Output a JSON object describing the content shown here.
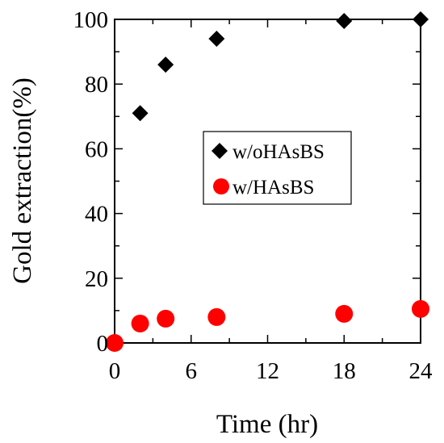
{
  "chart_data": {
    "type": "scatter",
    "xlabel": "Time (hr)",
    "ylabel": "Gold extraction(%)",
    "xlim": [
      0,
      24
    ],
    "ylim": [
      0,
      100
    ],
    "xticks": [
      "0",
      "6",
      "12",
      "18",
      "24"
    ],
    "yticks": [
      "0",
      "20",
      "40",
      "60",
      "80",
      "100"
    ],
    "grid": false,
    "legend_position": "center-right",
    "series": [
      {
        "name": "w/oHAsBS",
        "marker": "diamond",
        "color": "#000000",
        "x": [
          2,
          4,
          8,
          18,
          24
        ],
        "y": [
          71,
          86,
          94,
          99.5,
          100
        ]
      },
      {
        "name": "w/HAsBS",
        "marker": "circle",
        "color": "#ff0000",
        "x": [
          0,
          2,
          4,
          8,
          18,
          24
        ],
        "y": [
          0,
          6,
          7.5,
          8,
          9,
          10.5
        ]
      }
    ]
  }
}
